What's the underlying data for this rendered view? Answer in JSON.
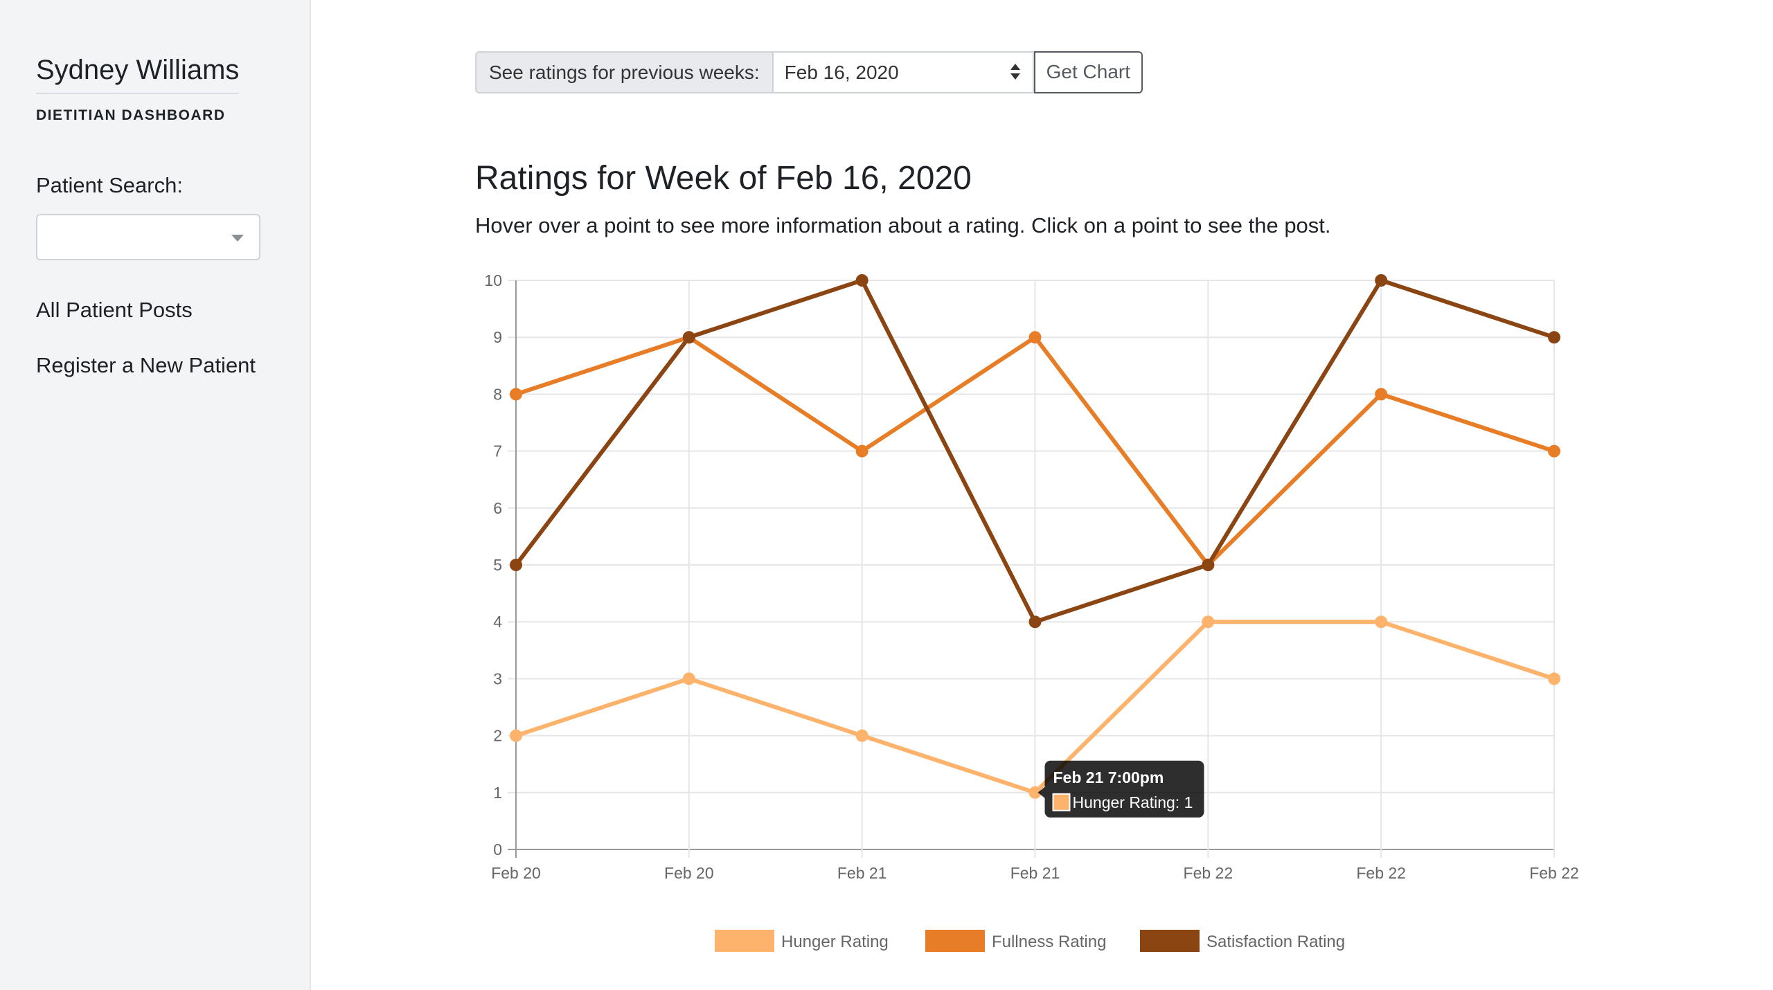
{
  "sidebar": {
    "user_name": "Sydney Williams",
    "dashboard_label": "DIETITIAN DASHBOARD",
    "search_label": "Patient Search:",
    "search_value": "",
    "nav": [
      {
        "label": "All Patient Posts"
      },
      {
        "label": "Register a New Patient"
      }
    ]
  },
  "week_picker": {
    "label": "See ratings for previous weeks:",
    "selected": "Feb 16, 2020",
    "button": "Get Chart"
  },
  "main": {
    "title": "Ratings for Week of Feb 16, 2020",
    "subtitle": "Hover over a point to see more information about a rating. Click on a point to see the post."
  },
  "colors": {
    "hunger": "#fdb36b",
    "fullness": "#e87d27",
    "satisfaction": "#8b4513",
    "grid": "#e6e6e6",
    "axis_text": "#666666"
  },
  "chart_data": {
    "type": "line",
    "categories": [
      "Feb 20",
      "Feb 20",
      "Feb 21",
      "Feb 21",
      "Feb 22",
      "Feb 22",
      "Feb 22"
    ],
    "ylim": [
      0,
      10
    ],
    "yticks": [
      0,
      1,
      2,
      3,
      4,
      5,
      6,
      7,
      8,
      9,
      10
    ],
    "grid": true,
    "legend_position": "bottom",
    "series": [
      {
        "name": "Hunger Rating",
        "color": "#fdb36b",
        "values": [
          2,
          3,
          2,
          1,
          4,
          4,
          3
        ]
      },
      {
        "name": "Fullness Rating",
        "color": "#e87d27",
        "values": [
          8,
          9,
          7,
          9,
          5,
          8,
          7
        ]
      },
      {
        "name": "Satisfaction Rating",
        "color": "#8b4513",
        "values": [
          5,
          9,
          10,
          4,
          5,
          10,
          9
        ]
      }
    ],
    "tooltip": {
      "series_index": 0,
      "point_index": 3,
      "title": "Feb 21  7:00pm",
      "label": "Hunger Rating: 1"
    }
  }
}
